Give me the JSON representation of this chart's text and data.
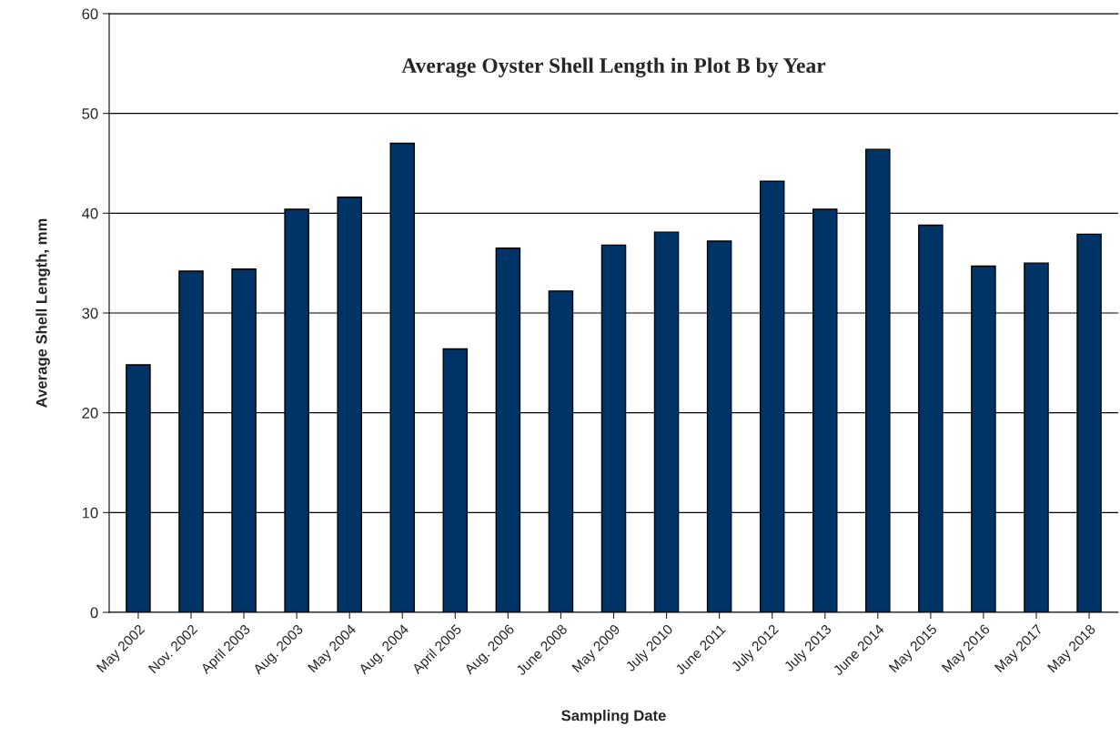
{
  "chart_data": {
    "type": "bar",
    "title": "Average Oyster Shell Length in Plot B by Year",
    "xlabel": "Sampling Date",
    "ylabel": "Average Shell Length, mm",
    "categories": [
      "May 2002",
      "Nov. 2002",
      "April 2003",
      "Aug. 2003",
      "May 2004",
      "Aug. 2004",
      "April 2005",
      "Aug. 2006",
      "June 2008",
      "May 2009",
      "July 2010",
      "June 2011",
      "July 2012",
      "July 2013",
      "June 2014",
      "May 2015",
      "May 2016",
      "May 2017",
      "May 2018"
    ],
    "values": [
      24.8,
      34.2,
      34.4,
      40.4,
      41.6,
      47.0,
      26.4,
      36.5,
      32.2,
      36.8,
      38.1,
      37.2,
      43.2,
      40.4,
      46.4,
      38.8,
      34.7,
      35.0,
      37.9
    ],
    "color": "#003366",
    "ylim": [
      0,
      60
    ],
    "yticks": [
      0,
      10,
      20,
      30,
      40,
      50,
      60
    ],
    "grid": "y",
    "legend": false
  }
}
